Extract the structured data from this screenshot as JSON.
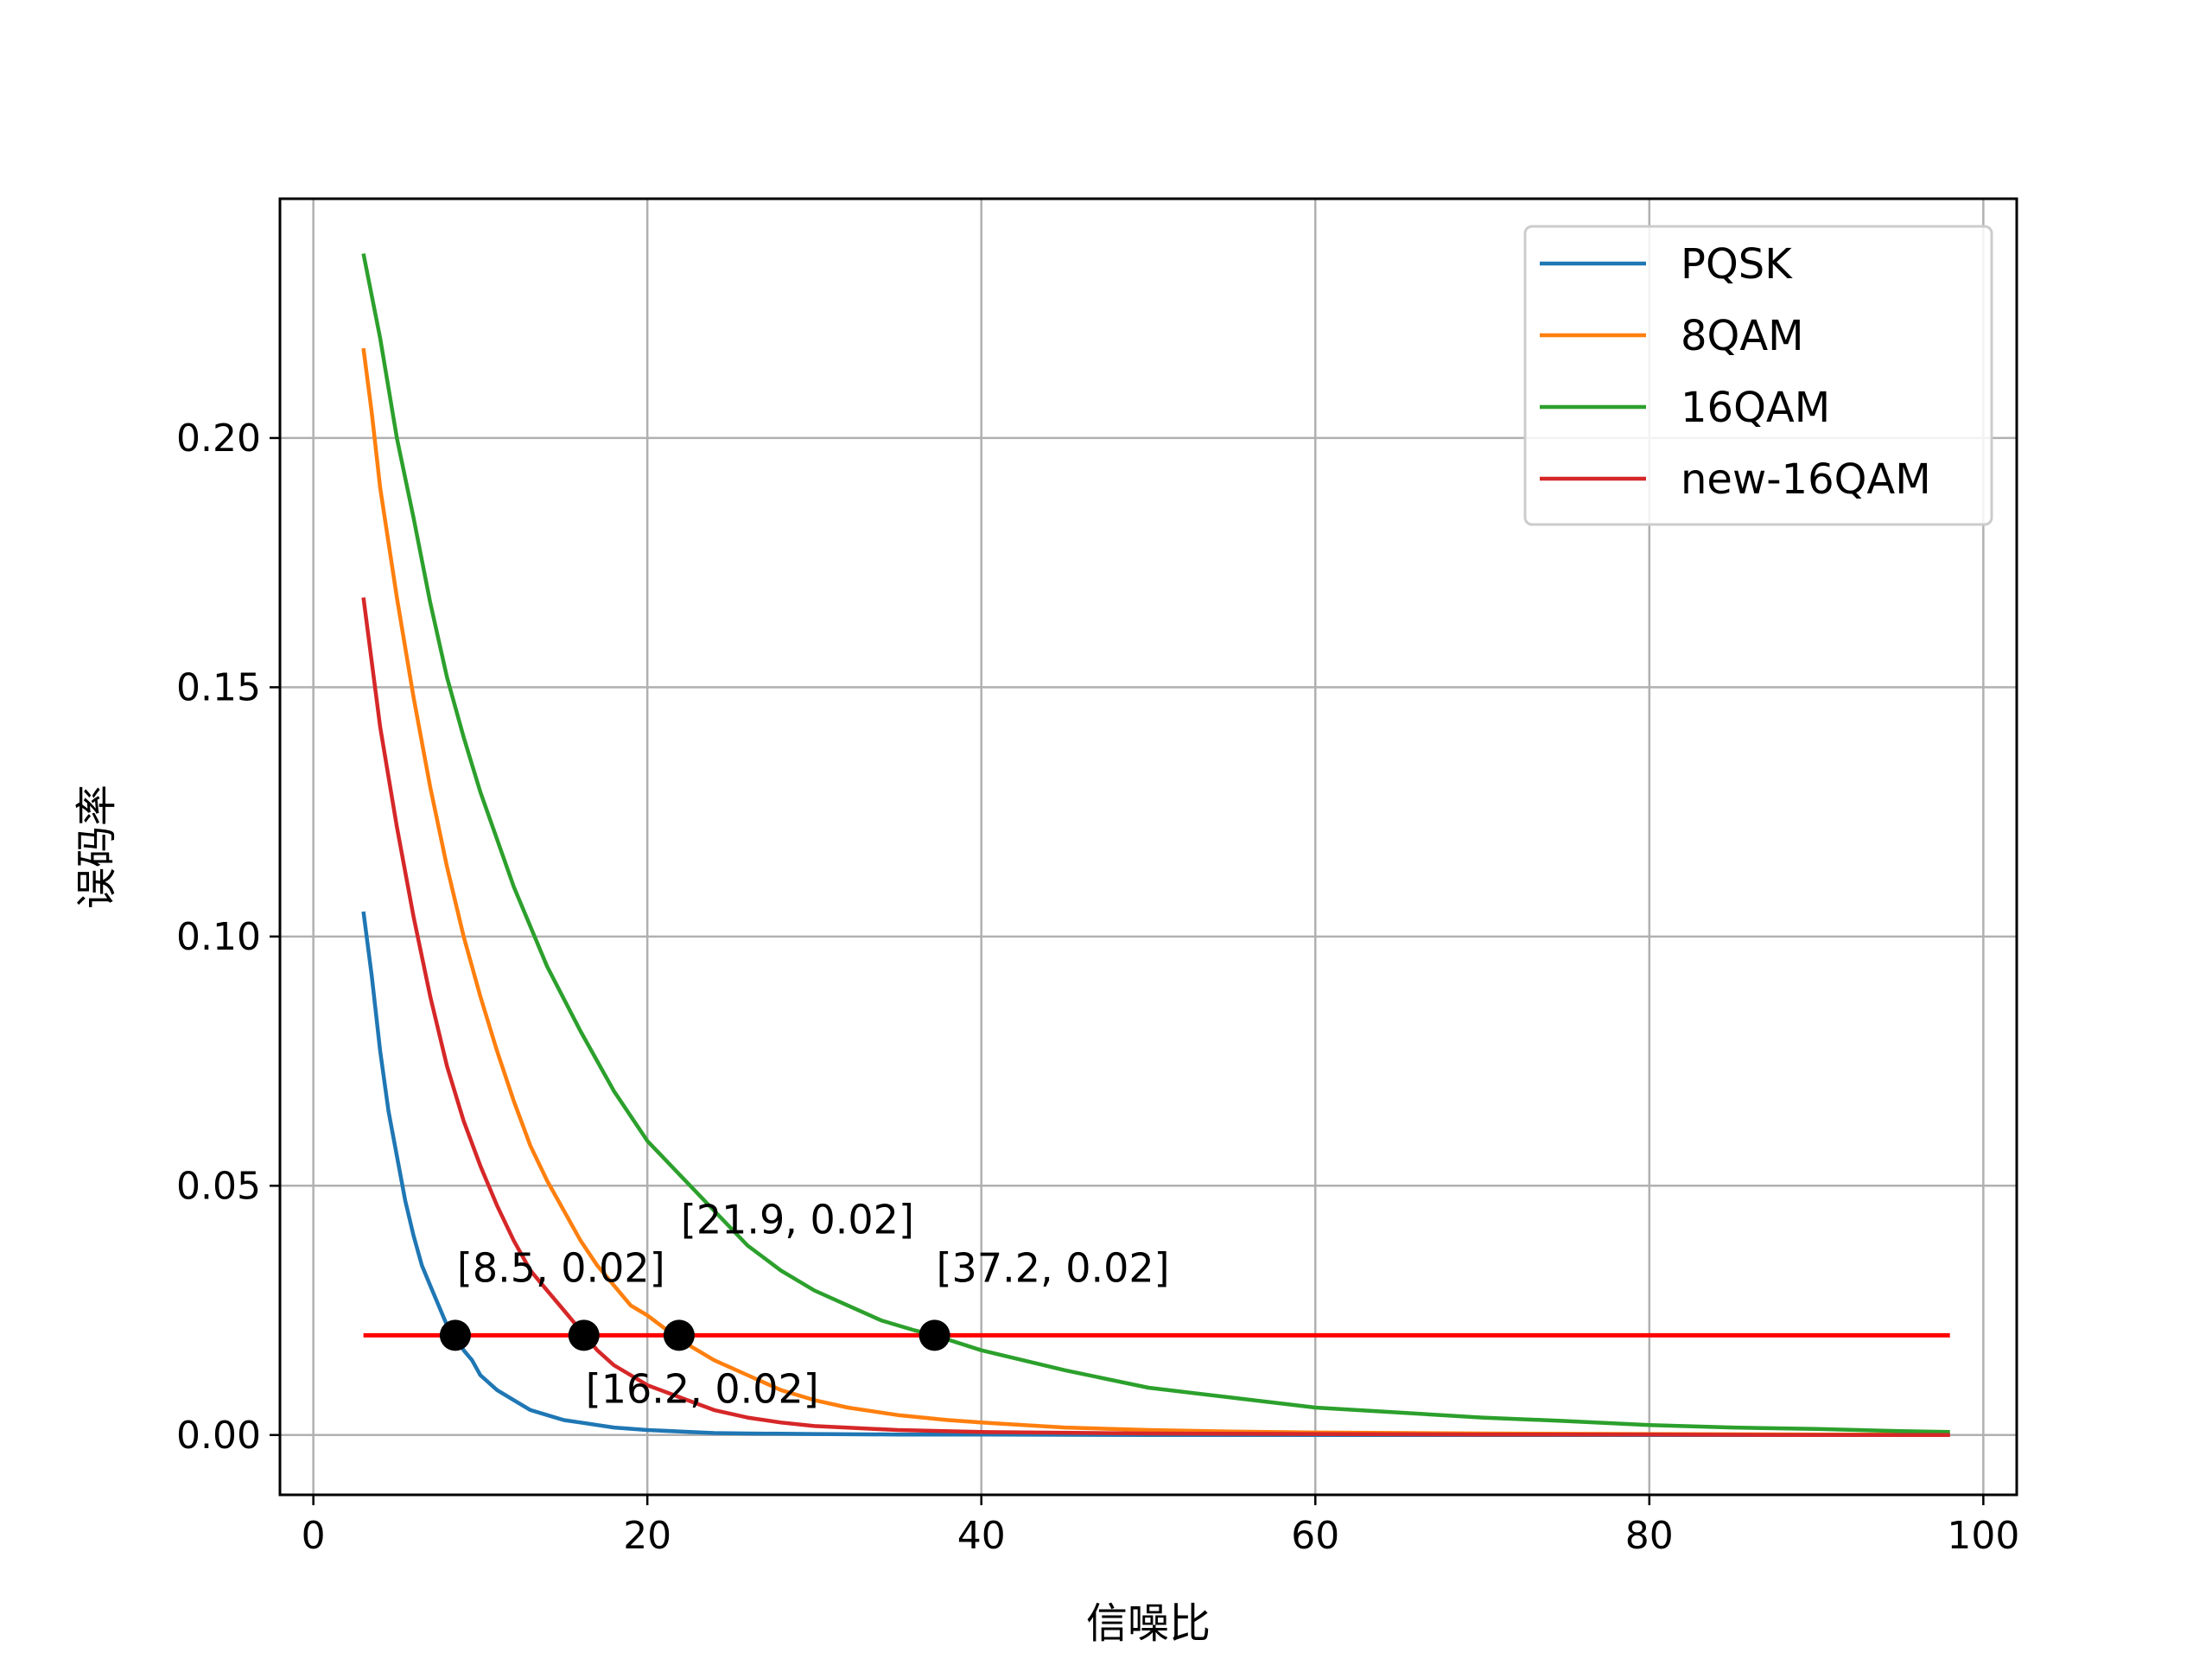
{
  "chart_data": {
    "type": "line",
    "title": "",
    "xlabel": "信噪比",
    "ylabel": "误码率",
    "xlim": [
      -2,
      102
    ],
    "ylim": [
      -0.012,
      0.248
    ],
    "x_ticks": [
      0,
      20,
      40,
      60,
      80,
      100
    ],
    "x_tick_labels": [
      "0",
      "20",
      "40",
      "60",
      "80",
      "100"
    ],
    "y_ticks": [
      0.0,
      0.05,
      0.1,
      0.15,
      0.2
    ],
    "y_tick_labels": [
      "0.00",
      "0.05",
      "0.10",
      "0.15",
      "0.20"
    ],
    "grid": true,
    "legend_position": "top-right",
    "series": [
      {
        "name": "PQSK",
        "color": "#1f77b4",
        "x": [
          3,
          3.5,
          4,
          4.5,
          5,
          5.5,
          6,
          6.5,
          7,
          7.5,
          8,
          8.5,
          9,
          9.5,
          10,
          11,
          12,
          13,
          14,
          15,
          16,
          18,
          20,
          22,
          24,
          26,
          30,
          35,
          40,
          50,
          60,
          70,
          80,
          90,
          98
        ],
        "y": [
          0.105,
          0.092,
          0.077,
          0.065,
          0.056,
          0.047,
          0.04,
          0.034,
          0.03,
          0.026,
          0.022,
          0.02,
          0.017,
          0.015,
          0.012,
          0.009,
          0.007,
          0.005,
          0.004,
          0.003,
          0.0025,
          0.0015,
          0.001,
          0.0007,
          0.0004,
          0.0003,
          0.0002,
          0.0001,
          0.0001,
          0.0,
          0.0,
          0.0,
          0.0,
          0.0,
          0.0
        ]
      },
      {
        "name": "8QAM",
        "color": "#ff7f0e",
        "x": [
          3,
          3.5,
          4,
          5,
          6,
          7,
          8,
          9,
          10,
          11,
          12,
          13,
          14,
          15,
          16,
          17,
          18,
          19,
          20,
          22,
          24,
          26,
          28,
          30,
          32,
          35,
          38,
          40,
          45,
          50,
          55,
          60,
          70,
          80,
          90,
          98
        ],
        "y": [
          0.218,
          0.205,
          0.19,
          0.168,
          0.148,
          0.13,
          0.114,
          0.1,
          0.088,
          0.077,
          0.067,
          0.058,
          0.051,
          0.045,
          0.039,
          0.034,
          0.03,
          0.026,
          0.024,
          0.019,
          0.015,
          0.012,
          0.009,
          0.007,
          0.0055,
          0.004,
          0.003,
          0.0025,
          0.0015,
          0.001,
          0.0007,
          0.0005,
          0.0003,
          0.0002,
          0.0001,
          0.0001
        ]
      },
      {
        "name": "16QAM",
        "color": "#2ca02c",
        "x": [
          3,
          4,
          5,
          6,
          7,
          8,
          9,
          10,
          12,
          14,
          16,
          18,
          20,
          22,
          24,
          26,
          28,
          30,
          32,
          34,
          36,
          37.2,
          40,
          45,
          50,
          55,
          60,
          65,
          70,
          75,
          80,
          85,
          90,
          95,
          98
        ],
        "y": [
          0.237,
          0.22,
          0.2,
          0.184,
          0.167,
          0.152,
          0.14,
          0.129,
          0.11,
          0.094,
          0.081,
          0.069,
          0.059,
          0.052,
          0.045,
          0.038,
          0.033,
          0.029,
          0.026,
          0.023,
          0.021,
          0.02,
          0.017,
          0.013,
          0.0095,
          0.0075,
          0.0055,
          0.0045,
          0.0035,
          0.0028,
          0.002,
          0.0015,
          0.0012,
          0.0008,
          0.0006
        ]
      },
      {
        "name": "new-16QAM",
        "color": "#d62728",
        "x": [
          3,
          3.5,
          4,
          5,
          6,
          7,
          8,
          9,
          10,
          11,
          12,
          13,
          14,
          15,
          16,
          17,
          18,
          19,
          20,
          22,
          24,
          26,
          28,
          30,
          35,
          40,
          50,
          60,
          70,
          80,
          90,
          98
        ],
        "y": [
          0.168,
          0.155,
          0.142,
          0.122,
          0.104,
          0.088,
          0.074,
          0.063,
          0.054,
          0.046,
          0.039,
          0.033,
          0.029,
          0.025,
          0.021,
          0.017,
          0.014,
          0.012,
          0.01,
          0.0075,
          0.005,
          0.0035,
          0.0025,
          0.0018,
          0.001,
          0.0006,
          0.0003,
          0.0002,
          0.0001,
          0.0001,
          0.0,
          0.0
        ]
      }
    ],
    "threshold_line": {
      "y": 0.02,
      "x_start": 3,
      "x_end": 98,
      "color": "#ff0000"
    },
    "markers": [
      {
        "x": 8.5,
        "y": 0.02,
        "label": "[8.5, 0.02]",
        "label_pos": "above"
      },
      {
        "x": 16.2,
        "y": 0.02,
        "label": "[16.2, 0.02]",
        "label_pos": "below"
      },
      {
        "x": 21.9,
        "y": 0.02,
        "label": "[21.9, 0.02]",
        "label_pos": "above-high"
      },
      {
        "x": 37.2,
        "y": 0.02,
        "label": "[37.2, 0.02]",
        "label_pos": "above"
      }
    ]
  }
}
